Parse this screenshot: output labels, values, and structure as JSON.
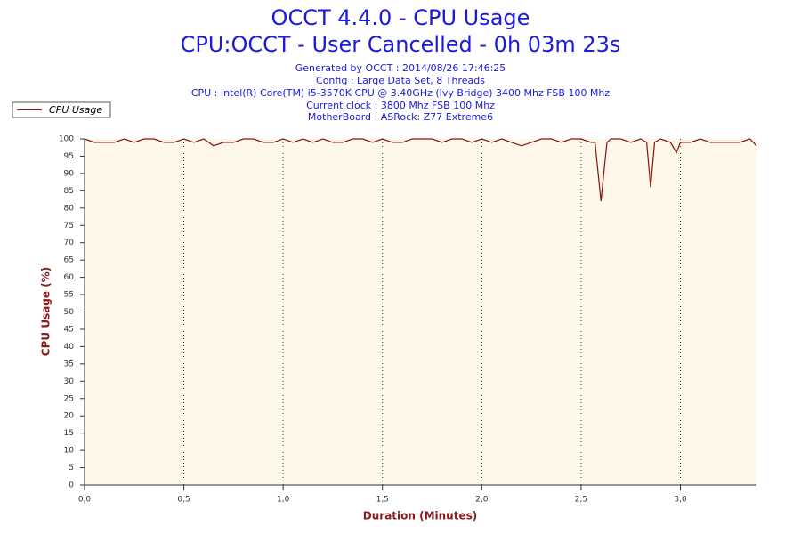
{
  "chart_data": {
    "type": "line",
    "title": "OCCT 4.4.0 - CPU Usage",
    "subtitle": "CPU:OCCT - User Cancelled - 0h 03m 23s",
    "info": [
      "Generated by OCCT : 2014/08/26 17:46:25",
      "Config : Large Data Set, 8 Threads",
      "CPU : Intel(R) Core(TM) i5-3570K CPU @ 3.40GHz (Ivy Bridge) 3400 Mhz FSB 100 Mhz",
      "Current clock : 3800 Mhz FSB 100 Mhz",
      "MotherBoard : ASRock: Z77 Extreme6"
    ],
    "x_label": "Duration (Minutes)",
    "y_label": "CPU Usage (%)",
    "x": [
      0,
      0.05,
      0.1,
      0.15,
      0.2,
      0.25,
      0.3,
      0.35,
      0.4,
      0.45,
      0.5,
      0.55,
      0.6,
      0.65,
      0.7,
      0.75,
      0.8,
      0.85,
      0.9,
      0.95,
      1.0,
      1.05,
      1.1,
      1.15,
      1.2,
      1.25,
      1.3,
      1.35,
      1.4,
      1.45,
      1.5,
      1.55,
      1.6,
      1.65,
      1.7,
      1.75,
      1.8,
      1.85,
      1.9,
      1.95,
      2.0,
      2.05,
      2.1,
      2.15,
      2.2,
      2.25,
      2.3,
      2.35,
      2.4,
      2.45,
      2.5,
      2.55,
      2.57,
      2.6,
      2.63,
      2.65,
      2.7,
      2.75,
      2.8,
      2.83,
      2.85,
      2.87,
      2.9,
      2.95,
      2.98,
      3.0,
      3.05,
      3.1,
      3.15,
      3.2,
      3.25,
      3.3,
      3.35,
      3.383
    ],
    "series": [
      {
        "name": "CPU Usage",
        "color": "#8b1010",
        "values": [
          100,
          99,
          99,
          99,
          100,
          99,
          100,
          100,
          99,
          99,
          100,
          99,
          100,
          98,
          99,
          99,
          100,
          100,
          99,
          99,
          100,
          99,
          100,
          99,
          100,
          99,
          99,
          100,
          100,
          99,
          100,
          99,
          99,
          100,
          100,
          100,
          99,
          100,
          100,
          99,
          100,
          99,
          100,
          99,
          98,
          99,
          100,
          100,
          99,
          100,
          100,
          99,
          99,
          82,
          99,
          100,
          100,
          99,
          100,
          99,
          86,
          99,
          100,
          99,
          96,
          99,
          99,
          100,
          99,
          99,
          99,
          99,
          100,
          98
        ]
      }
    ],
    "xlim": [
      0,
      3.383
    ],
    "ylim": [
      0,
      100
    ],
    "xticks": [
      {
        "value": 0,
        "label": "0,0"
      },
      {
        "value": 0.5,
        "label": "0,5"
      },
      {
        "value": 1,
        "label": "1,0"
      },
      {
        "value": 1.5,
        "label": "1,5"
      },
      {
        "value": 2,
        "label": "2,0"
      },
      {
        "value": 2.5,
        "label": "2,5"
      },
      {
        "value": 3,
        "label": "3,0"
      }
    ],
    "yticks": [
      0,
      5,
      10,
      15,
      20,
      25,
      30,
      35,
      40,
      45,
      50,
      55,
      60,
      65,
      70,
      75,
      80,
      85,
      90,
      95,
      100
    ],
    "grid": true,
    "plot_background": "#fdf8e9"
  }
}
